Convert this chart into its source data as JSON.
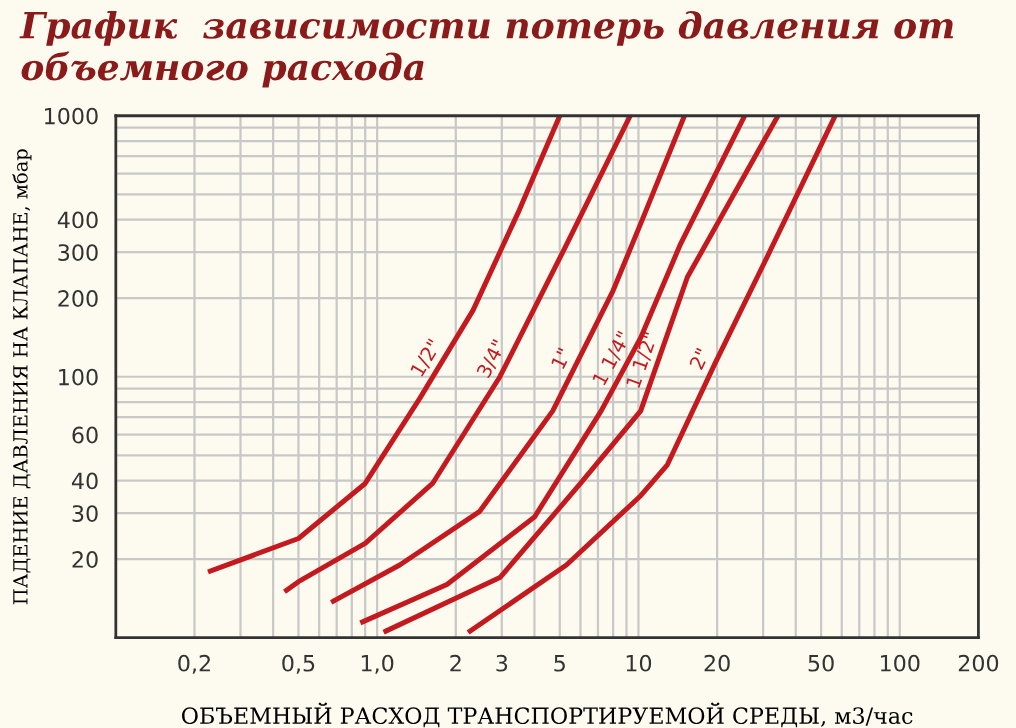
{
  "chart_data": {
    "type": "line",
    "title": "График  зависимости потерь давления от  объемного расхода",
    "xlabel": "ОБЪЕМНЫЙ РАСХОД ТРАНСПОРТИРУЕМОЙ СРЕДЫ, м3/час",
    "ylabel": "ПАДЕНИЕ ДАВЛЕНИЯ НА КЛАПАНЕ, мбар",
    "log": "xy",
    "grid": true,
    "legend": false,
    "marker": "none",
    "line_style": "solid",
    "xlim": [
      0.1,
      200
    ],
    "ylim": [
      10,
      1000
    ],
    "xticks": [
      {
        "value": 0.2,
        "label": "0,2"
      },
      {
        "value": 0.3,
        "label": null
      },
      {
        "value": 0.4,
        "label": null
      },
      {
        "value": 0.5,
        "label": "0,5"
      },
      {
        "value": 0.6,
        "label": null
      },
      {
        "value": 0.7,
        "label": null
      },
      {
        "value": 0.8,
        "label": null
      },
      {
        "value": 0.9,
        "label": null
      },
      {
        "value": 1,
        "label": "1,0"
      },
      2,
      3,
      {
        "value": 4,
        "label": null
      },
      5,
      {
        "value": 6,
        "label": null
      },
      {
        "value": 7,
        "label": null
      },
      {
        "value": 8,
        "label": null
      },
      {
        "value": 9,
        "label": null
      },
      10,
      20,
      {
        "value": 30,
        "label": null
      },
      {
        "value": 40,
        "label": null
      },
      50,
      {
        "value": 60,
        "label": null
      },
      {
        "value": 70,
        "label": null
      },
      {
        "value": 80,
        "label": null
      },
      {
        "value": 90,
        "label": null
      },
      100,
      200
    ],
    "yticks": [
      20,
      30,
      40,
      {
        "value": 50,
        "label": null
      },
      60,
      {
        "value": 70,
        "label": null
      },
      {
        "value": 80,
        "label": null
      },
      {
        "value": 90,
        "label": null
      },
      100,
      200,
      300,
      400,
      {
        "value": 500,
        "label": null
      },
      {
        "value": 600,
        "label": null
      },
      {
        "value": 700,
        "label": null
      },
      {
        "value": 800,
        "label": null
      },
      {
        "value": 900,
        "label": null
      },
      1000
    ],
    "series": [
      {
        "name": "1/2\"",
        "color": "#c41a1f",
        "x": [
          0.23,
          0.5,
          0.9,
          1.46,
          2.33,
          3.5,
          5.0
        ],
        "values": [
          18,
          24,
          39,
          83,
          180,
          435,
          1000
        ]
      },
      {
        "name": "3/4\"",
        "color": "#c41a1f",
        "x": [
          0.45,
          0.5,
          0.9,
          1.63,
          2.95,
          5.3,
          9.3
        ],
        "values": [
          15.2,
          16.4,
          23,
          39,
          100,
          320,
          1000
        ]
      },
      {
        "name": "1\"",
        "color": "#c41a1f",
        "x": [
          0.68,
          1.22,
          2.47,
          4.7,
          8.0,
          10.2,
          15.0
        ],
        "values": [
          13.8,
          19,
          30.5,
          74,
          214,
          386,
          1000
        ]
      },
      {
        "name": "1 1/4\"",
        "color": "#c41a1f",
        "x": [
          0.88,
          1.85,
          4.0,
          7.2,
          10.2,
          14.5,
          25.5
        ],
        "values": [
          11.5,
          16,
          29,
          74,
          141,
          323,
          1000
        ]
      },
      {
        "name": "1 1/2\"",
        "color": "#c41a1f",
        "x": [
          1.08,
          2.95,
          6.0,
          10.2,
          15.4,
          34.2
        ],
        "values": [
          10.6,
          17,
          39,
          74,
          241,
          1000
        ]
      },
      {
        "name": "2\"",
        "color": "#c41a1f",
        "x": [
          2.27,
          5.3,
          10.2,
          12.9,
          19.6,
          31.2,
          56.6
        ],
        "values": [
          10.6,
          19,
          35,
          46,
          112,
          290,
          1000
        ]
      }
    ]
  }
}
